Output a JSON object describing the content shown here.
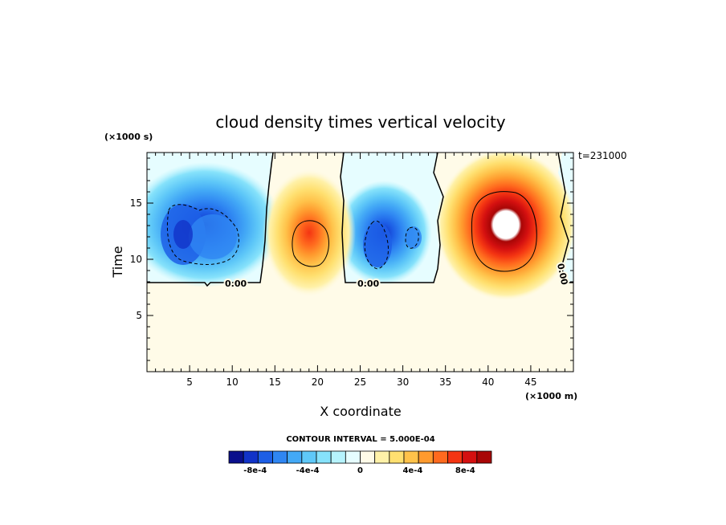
{
  "chart_data": {
    "type": "heatmap",
    "title": "cloud density times vertical velocity",
    "xlabel": "X coordinate",
    "ylabel": "Time",
    "x_unit": "(×1000 m)",
    "y_unit": "(×1000 s)",
    "time_label": "t=231000",
    "xlim": [
      0,
      50
    ],
    "ylim": [
      0,
      19.5
    ],
    "xticks": [
      5,
      10,
      15,
      20,
      25,
      30,
      35,
      40,
      45
    ],
    "yticks": [
      5,
      10,
      15
    ],
    "grid": false,
    "contour_interval_text": "CONTOUR INTERVAL = 5.000E-04",
    "contour_labels": [
      "0.00",
      "0.00",
      "0.00"
    ],
    "colorbar": {
      "min": -0.001,
      "max": 0.001,
      "tick_labels": [
        "-8e-4",
        "-4e-4",
        "0",
        "4e-4",
        "8e-4"
      ],
      "tick_values": [
        -0.0008,
        -0.0004,
        0,
        0.0004,
        0.0008
      ],
      "colors": [
        "#0a0f8c",
        "#1133c8",
        "#1d5fe6",
        "#2f86f2",
        "#43a9f6",
        "#5fc8f8",
        "#86e2fb",
        "#b6f3fd",
        "#e6fdff",
        "#fffbe8",
        "#fff1a8",
        "#ffe070",
        "#ffc24a",
        "#ff9a2e",
        "#ff6a1e",
        "#f43512",
        "#d41010",
        "#a80606"
      ]
    },
    "features": [
      {
        "type": "updraft-core",
        "x": 42,
        "y": 11.8,
        "peak": 0.0011
      },
      {
        "type": "updraft",
        "x": 19.5,
        "y": 11.5,
        "peak": 0.0006
      },
      {
        "type": "downdraft",
        "x": 5,
        "y": 12.2,
        "peak": -0.0008
      },
      {
        "type": "downdraft",
        "x": 28,
        "y": 11,
        "peak": -0.0008
      }
    ]
  }
}
